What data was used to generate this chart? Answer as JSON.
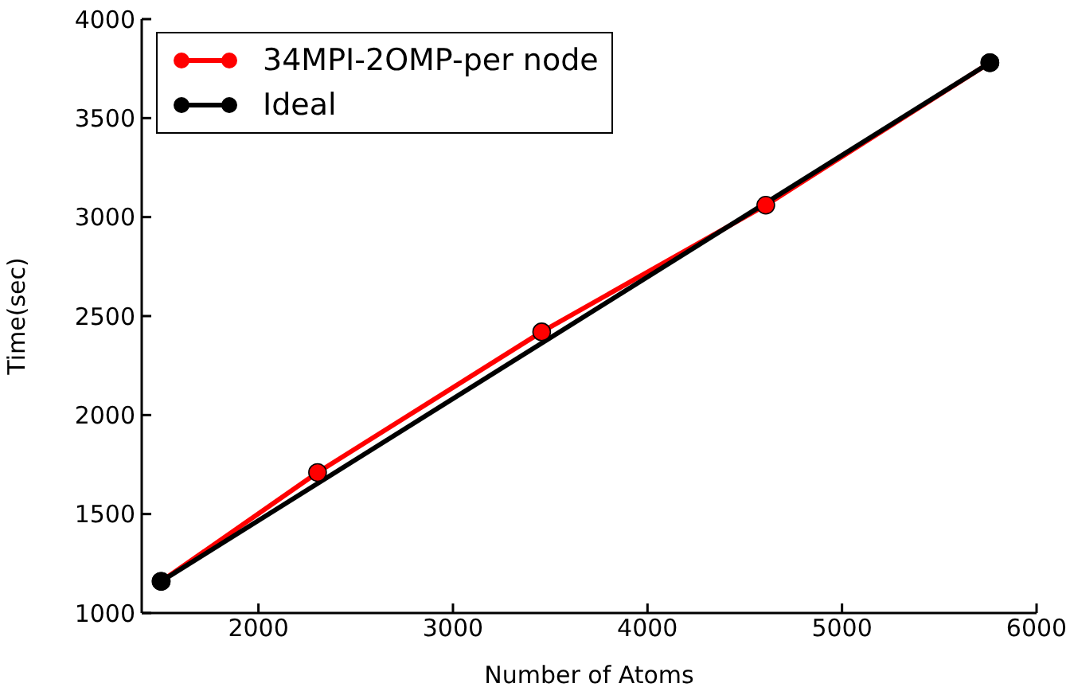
{
  "chart_data": {
    "type": "line",
    "xlabel": "Number of Atoms",
    "ylabel": "Time(sec)",
    "xlim": [
      1400,
      6000
    ],
    "xticks": [
      2000,
      3000,
      4000,
      5000,
      6000
    ],
    "ylim": [
      1000,
      4000
    ],
    "yticks": [
      1000,
      1500,
      2000,
      2500,
      3000,
      3500,
      4000
    ],
    "grid": false,
    "legend": "top left",
    "marker": "circle",
    "line_style": "solid",
    "series": [
      {
        "name": "34MPI-2OMP-per node",
        "color": "#ff0000",
        "x": [
          1500,
          2304,
          3456,
          4608,
          5760
        ],
        "values": [
          1160,
          1710,
          2420,
          3060,
          3780
        ]
      },
      {
        "name": "Ideal",
        "color": "#000000",
        "x": [
          1500,
          5760
        ],
        "values": [
          1160,
          3780
        ]
      }
    ]
  }
}
